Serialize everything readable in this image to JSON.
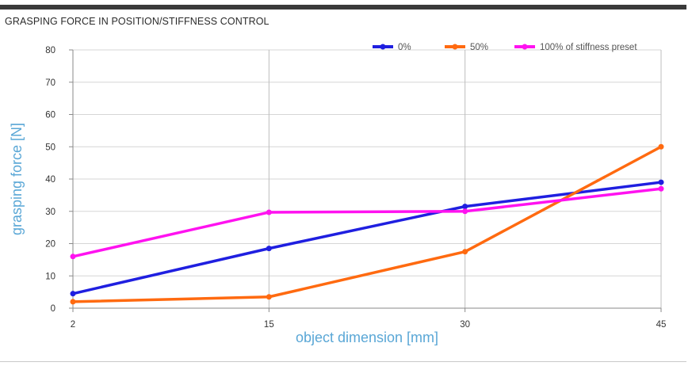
{
  "chart_data": {
    "type": "line",
    "title": "GRASPING FORCE IN POSITION/STIFFNESS CONTROL",
    "xlabel": "object dimension [mm]",
    "ylabel": "grasping force [N]",
    "x": [
      2,
      15,
      30,
      45
    ],
    "x_tick_labels": [
      "2",
      "15",
      "30",
      "45"
    ],
    "ylim": [
      0,
      80
    ],
    "y_ticks": [
      0,
      10,
      20,
      30,
      40,
      50,
      60,
      70,
      80
    ],
    "grid": "vertical and horizontal",
    "legend_position": "top-right",
    "series": [
      {
        "name": "0%",
        "color": "#1f1fe0",
        "values": [
          4.5,
          18.5,
          31.5,
          39
        ]
      },
      {
        "name": "50%",
        "color": "#ff6a10",
        "values": [
          2,
          3.5,
          17.5,
          50
        ]
      },
      {
        "name": "100% of stiffness preset",
        "color": "#ff12f0",
        "values": [
          16,
          29.7,
          30,
          37
        ]
      }
    ]
  }
}
